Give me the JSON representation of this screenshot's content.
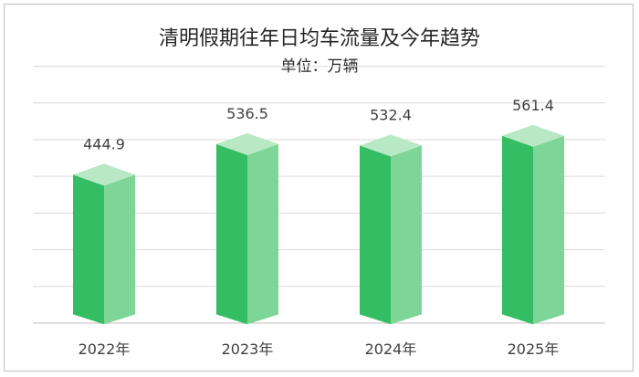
{
  "chart_data": {
    "type": "bar",
    "title": "清明假期往年日均车流量及今年趋势",
    "subtitle": "单位：万辆",
    "categories": [
      "2022年",
      "2023年",
      "2024年",
      "2025年"
    ],
    "series": [
      {
        "values": [
          444.9,
          536.5,
          532.4,
          561.4
        ]
      }
    ],
    "value_labels": [
      "444.9",
      "536.5",
      "532.4",
      "561.4"
    ],
    "ylim": [
      0,
      700
    ],
    "grid": true,
    "bar_style": "3d-cylinder-box",
    "colors": {
      "bar_front": "#34bd63",
      "bar_side": "#7dd697",
      "bar_top": "#b8e9c4",
      "grid": "#d9d9d9",
      "axis": "#bfbfbf",
      "text": "#404040"
    }
  }
}
